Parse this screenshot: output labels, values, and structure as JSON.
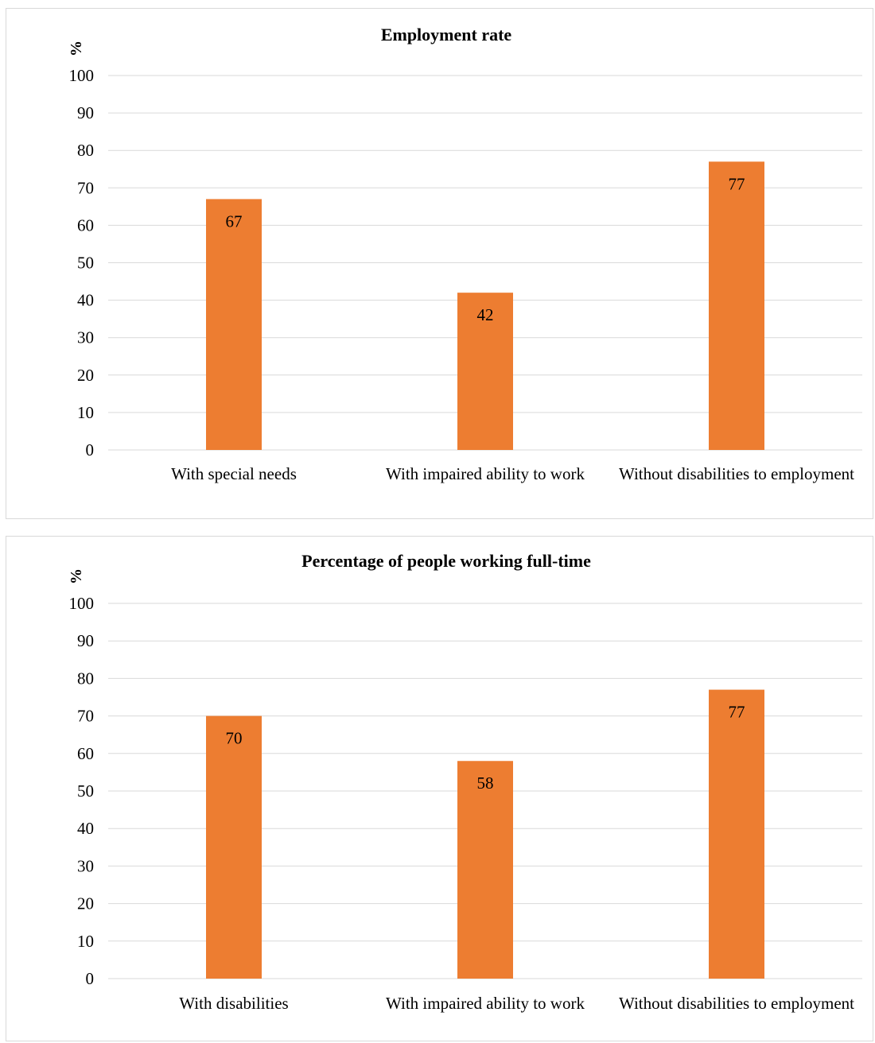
{
  "chart_data": [
    {
      "type": "bar",
      "title": "Employment rate",
      "ylabel": "%",
      "xlabel": "",
      "categories": [
        "With special needs",
        "With impaired ability to work",
        "Without disabilities to employment"
      ],
      "values": [
        67,
        42,
        77
      ],
      "data_labels": [
        "67",
        "42",
        "77"
      ],
      "ylim": [
        0,
        100
      ],
      "yticks": [
        0,
        10,
        20,
        30,
        40,
        50,
        60,
        70,
        80,
        90,
        100
      ],
      "grid": true,
      "legend": "none",
      "bar_color": "#ED7D31",
      "grid_color": "#D9D9D9"
    },
    {
      "type": "bar",
      "title": "Percentage of people working full-time",
      "ylabel": "%",
      "xlabel": "",
      "categories": [
        "With disabilities",
        "With impaired ability to work",
        "Without disabilities to employment"
      ],
      "values": [
        70,
        58,
        77
      ],
      "data_labels": [
        "70",
        "58",
        "77"
      ],
      "ylim": [
        0,
        100
      ],
      "yticks": [
        0,
        10,
        20,
        30,
        40,
        50,
        60,
        70,
        80,
        90,
        100
      ],
      "grid": true,
      "legend": "none",
      "bar_color": "#ED7D31",
      "grid_color": "#D9D9D9"
    }
  ]
}
